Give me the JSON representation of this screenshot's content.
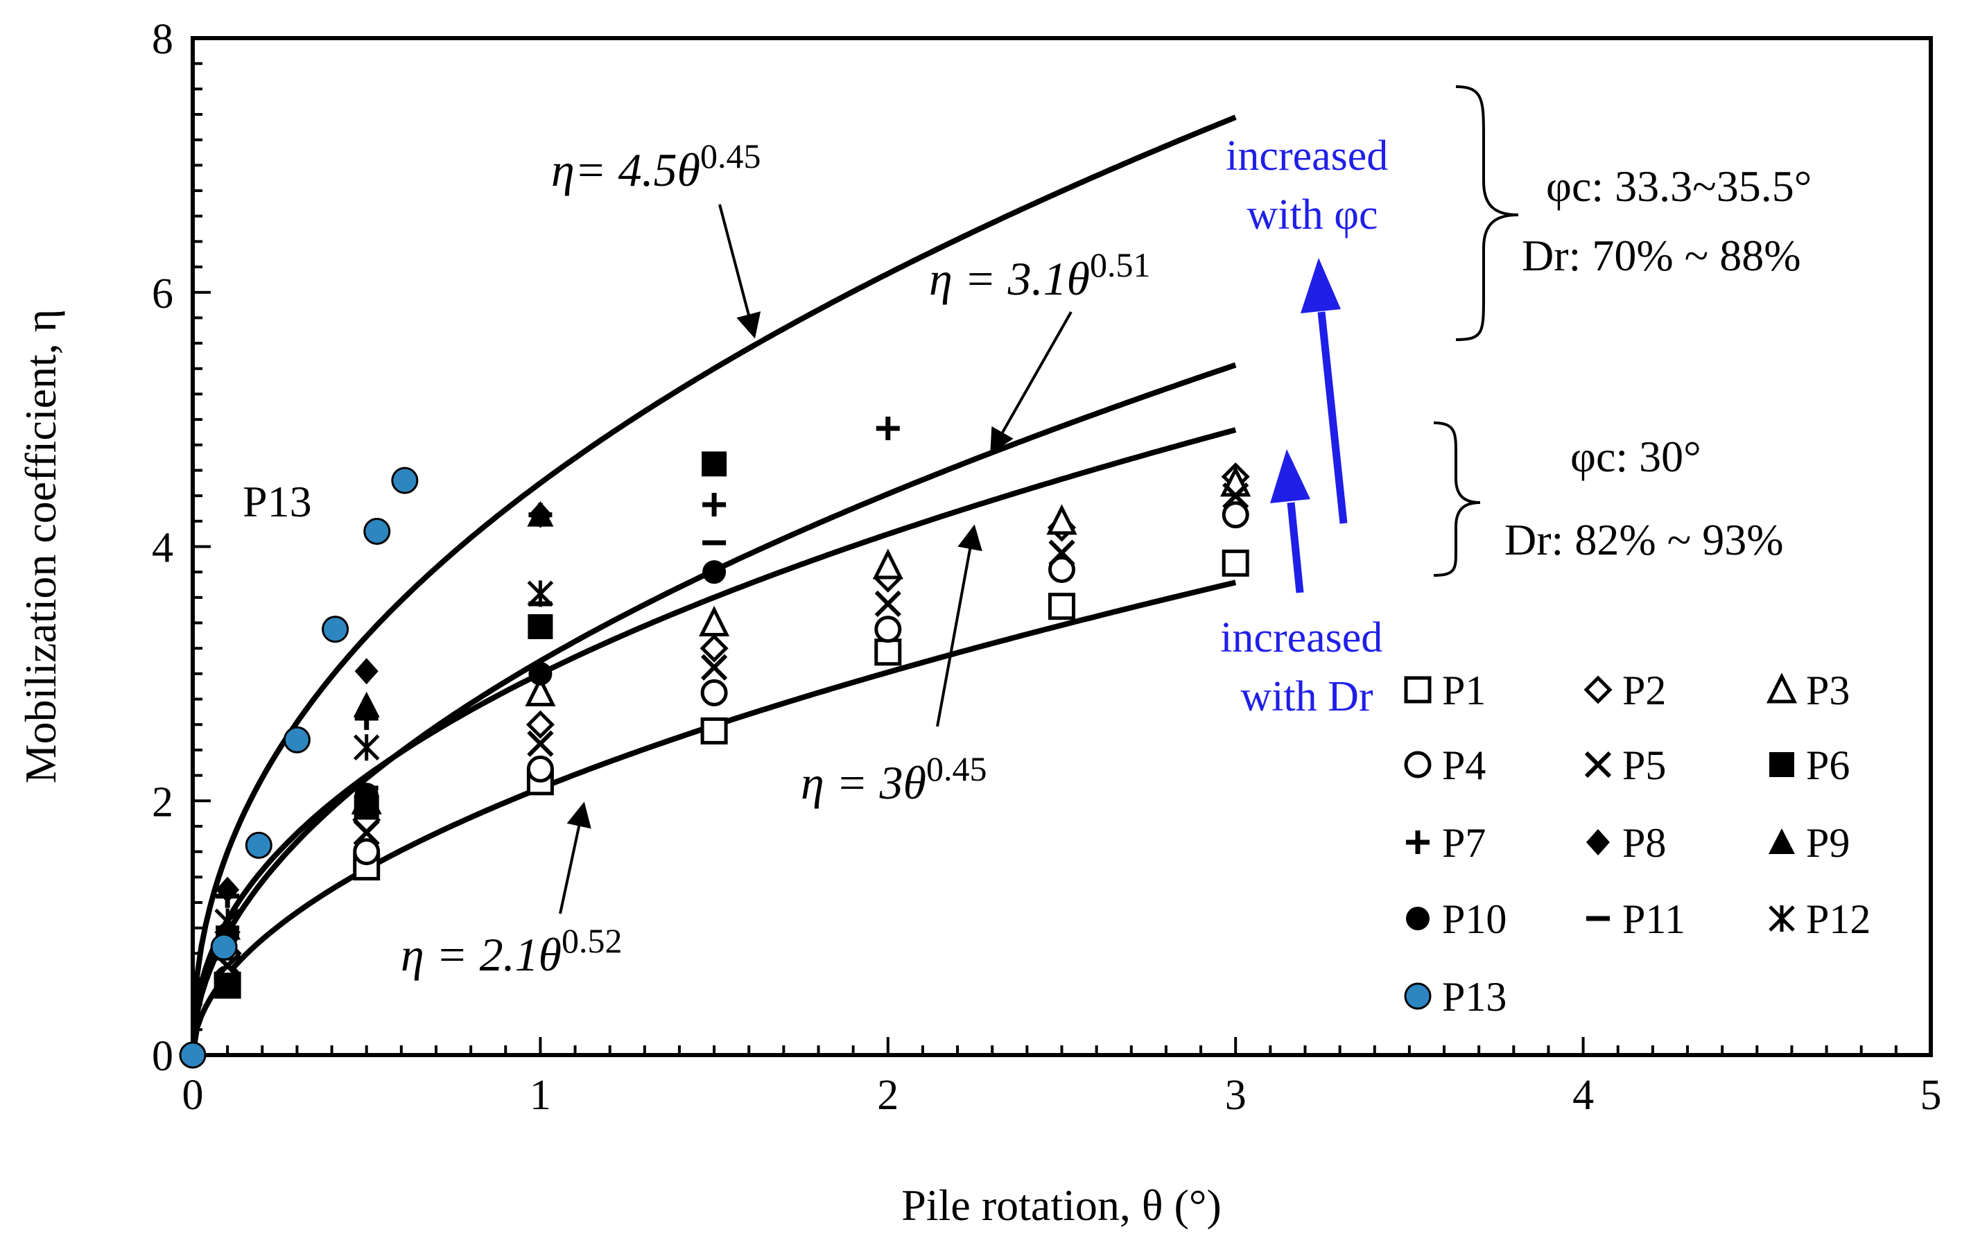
{
  "chart_data": {
    "type": "scatter",
    "xlabel": "Pile rotation, θ (°)",
    "ylabel": "Mobilization coefficient, η",
    "xlim": [
      0,
      5
    ],
    "ylim": [
      0,
      8
    ],
    "x_ticks": [
      "0",
      "1",
      "2",
      "3",
      "4",
      "5"
    ],
    "y_ticks": [
      "0",
      "2",
      "4",
      "6",
      "8"
    ],
    "series": [
      {
        "name": "P1",
        "marker": "square-open",
        "x": [
          0.1,
          0.5,
          1.0,
          1.5,
          2.0,
          2.5,
          3.0
        ],
        "y": [
          0.55,
          1.48,
          2.15,
          2.55,
          3.17,
          3.53,
          3.87
        ]
      },
      {
        "name": "P2",
        "marker": "diamond-open",
        "x": [
          0.1,
          0.5,
          1.0,
          1.5,
          2.0,
          2.5,
          3.0
        ],
        "y": [
          0.8,
          1.85,
          2.6,
          3.2,
          3.75,
          4.15,
          4.55
        ]
      },
      {
        "name": "P3",
        "marker": "triangle-open",
        "x": [
          0.1,
          0.5,
          1.0,
          1.5,
          2.0,
          2.5,
          3.0
        ],
        "y": [
          0.85,
          2.0,
          2.85,
          3.4,
          3.85,
          4.2,
          4.5
        ]
      },
      {
        "name": "P4",
        "marker": "circle-open",
        "x": [
          0.1,
          0.5,
          1.0,
          1.5,
          2.0,
          2.5,
          3.0
        ],
        "y": [
          0.6,
          1.6,
          2.25,
          2.85,
          3.35,
          3.82,
          4.25
        ]
      },
      {
        "name": "P5",
        "marker": "x",
        "x": [
          0.1,
          0.5,
          1.0,
          1.5,
          2.0,
          2.5,
          3.0
        ],
        "y": [
          0.7,
          1.75,
          2.45,
          3.05,
          3.55,
          3.95,
          4.4
        ]
      },
      {
        "name": "P6",
        "marker": "square-filled",
        "x": [
          0.1,
          0.5,
          1.0,
          1.5
        ],
        "y": [
          0.55,
          1.95,
          3.37,
          4.65
        ]
      },
      {
        "name": "P7",
        "marker": "plus",
        "x": [
          0.1,
          0.5,
          1.0,
          1.5,
          2.0
        ],
        "y": [
          1.25,
          2.65,
          4.25,
          4.33,
          4.93
        ]
      },
      {
        "name": "P8",
        "marker": "diamond-filled",
        "x": [
          0.1,
          0.5,
          1.0
        ],
        "y": [
          1.3,
          3.02,
          4.25
        ]
      },
      {
        "name": "P9",
        "marker": "triangle-filled",
        "x": [
          0.1,
          0.5,
          1.0
        ],
        "y": [
          1.0,
          2.75,
          4.25
        ]
      },
      {
        "name": "P10",
        "marker": "circle-filled",
        "x": [
          0.1,
          0.5,
          1.0,
          1.5
        ],
        "y": [
          0.95,
          2.05,
          3.0,
          3.8
        ]
      },
      {
        "name": "P11",
        "marker": "minus",
        "x": [
          0.1,
          0.5,
          1.0,
          1.5
        ],
        "y": [
          1.0,
          2.1,
          3.55,
          4.03
        ]
      },
      {
        "name": "P12",
        "marker": "asterisk",
        "x": [
          0.1,
          0.5,
          1.0
        ],
        "y": [
          1.05,
          2.42,
          3.63
        ]
      },
      {
        "name": "P13",
        "marker": "circle-blue",
        "x": [
          0.0,
          0.09,
          0.19,
          0.3,
          0.41,
          0.53,
          0.61
        ],
        "y": [
          0.0,
          0.85,
          1.65,
          2.48,
          3.35,
          4.12,
          4.52
        ]
      }
    ],
    "fit_curves": [
      {
        "label": "η= 4.5θ",
        "exp_label": "0.45",
        "a": 4.5,
        "b": 0.45,
        "x_max": 3.0
      },
      {
        "label": "η = 3.1θ",
        "exp_label": "0.51",
        "a": 3.1,
        "b": 0.51,
        "x_max": 3.0
      },
      {
        "label": "η = 3θ",
        "exp_label": "0.45",
        "a": 3.0,
        "b": 0.45,
        "x_max": 3.0
      },
      {
        "label": "η = 2.1θ",
        "exp_label": "0.52",
        "a": 2.1,
        "b": 0.52,
        "x_max": 3.0
      }
    ],
    "annotations": {
      "p13_label": "P13",
      "phi_label_1": "φc: 33.3~35.5°",
      "dr_label_1": "Dr: 70% ~ 88%",
      "phi_label_2": "φc: 30°",
      "dr_label_2": "Dr: 82% ~ 93%",
      "increased_phi_line1": "increased",
      "increased_phi_line2": "with φc",
      "increased_dr_line1": "increased",
      "increased_dr_line2": "with Dr"
    },
    "colors": {
      "curve": "#000000",
      "p13_fill": "#2e86c1",
      "arrow_blue": "#1f1fe8"
    }
  }
}
